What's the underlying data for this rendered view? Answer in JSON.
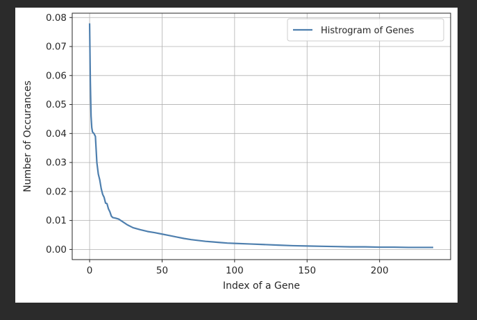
{
  "chart_data": {
    "type": "line",
    "title": "",
    "xlabel": "Index of a Gene",
    "ylabel": "Number of Occurances",
    "xlim": [
      -12,
      249
    ],
    "ylim": [
      -0.0035,
      0.0815
    ],
    "xticks": [
      0,
      50,
      100,
      150,
      200
    ],
    "xtick_labels": [
      "0",
      "50",
      "100",
      "150",
      "200"
    ],
    "yticks": [
      0.0,
      0.01,
      0.02,
      0.03,
      0.04,
      0.05,
      0.06,
      0.07,
      0.08
    ],
    "ytick_labels": [
      "0.00",
      "0.01",
      "0.02",
      "0.03",
      "0.04",
      "0.05",
      "0.06",
      "0.07",
      "0.08"
    ],
    "grid": true,
    "legend_position": "top-right",
    "series": [
      {
        "name": "Histrogram of Genes",
        "color": "#4e7fae",
        "x": [
          0,
          0.5,
          1,
          1.5,
          2,
          3,
          4,
          5,
          6,
          7,
          8,
          9,
          10,
          11,
          12,
          13,
          14,
          15,
          16,
          18,
          20,
          23,
          26,
          30,
          35,
          40,
          45,
          50,
          55,
          60,
          65,
          70,
          75,
          80,
          85,
          90,
          95,
          100,
          110,
          120,
          130,
          140,
          150,
          160,
          170,
          180,
          190,
          200,
          210,
          220,
          230,
          237
        ],
        "y": [
          0.078,
          0.058,
          0.046,
          0.042,
          0.0405,
          0.04,
          0.039,
          0.03,
          0.026,
          0.024,
          0.021,
          0.019,
          0.018,
          0.016,
          0.0158,
          0.014,
          0.013,
          0.0115,
          0.011,
          0.0108,
          0.0105,
          0.0095,
          0.0085,
          0.0075,
          0.0068,
          0.0062,
          0.0058,
          0.0053,
          0.0048,
          0.0043,
          0.0038,
          0.0034,
          0.0031,
          0.0028,
          0.0026,
          0.0024,
          0.0022,
          0.0021,
          0.0019,
          0.0017,
          0.0015,
          0.0013,
          0.0012,
          0.0011,
          0.001,
          0.0009,
          0.0009,
          0.0008,
          0.0008,
          0.0007,
          0.0007,
          0.0007
        ]
      }
    ]
  }
}
